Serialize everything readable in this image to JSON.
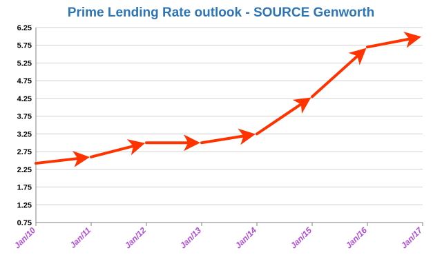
{
  "chart_data": {
    "type": "line",
    "title": "Prime Lending Rate outlook - SOURCE Genworth",
    "xlabel": "",
    "ylabel": "",
    "categories": [
      "Jan/10",
      "Jan/11",
      "Jan/12",
      "Jan/13",
      "Jan/14",
      "Jan/15",
      "Jan/16",
      "Jan/17"
    ],
    "series": [
      {
        "values": [
          2.42,
          2.6,
          3.0,
          3.0,
          3.25,
          4.3,
          5.7,
          6.0
        ]
      }
    ],
    "ylim": [
      0.75,
      6.25
    ],
    "yticks": [
      "0.75",
      "1.25",
      "1.75",
      "2.25",
      "2.75",
      "3.25",
      "3.75",
      "4.25",
      "4.75",
      "5.25",
      "5.75",
      "6.25"
    ],
    "grid": true,
    "legend": "none",
    "line_color": "#ff3300",
    "title_color": "#2e75b6",
    "xtick_color": "#b14cd9",
    "grid_color": "#d0d0d0"
  }
}
